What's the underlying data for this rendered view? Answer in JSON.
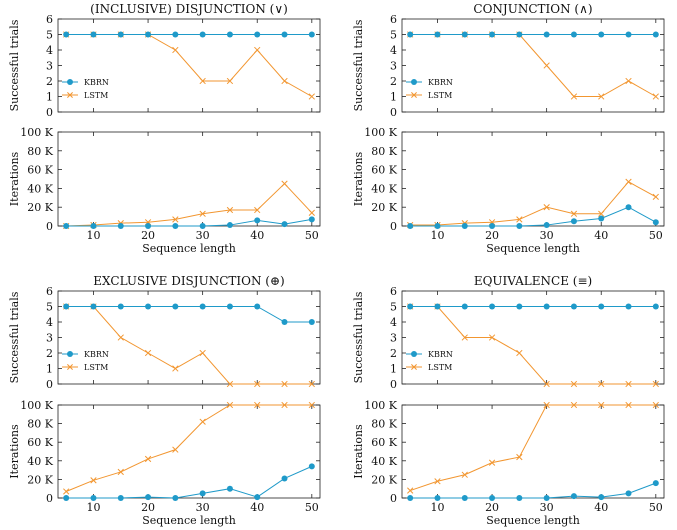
{
  "colors": {
    "kbrn": "#1f9ac9",
    "lstm": "#f29630"
  },
  "chart_data": [
    {
      "type": "line",
      "panel": "trials",
      "title": "(INCLUSIVE) DISJUNCTION (∨)",
      "xlabel": "",
      "ylabel": "Successful trials",
      "xlim": [
        3.5,
        51.5
      ],
      "ylim": [
        0,
        6
      ],
      "x": [
        5,
        10,
        15,
        20,
        25,
        30,
        35,
        40,
        45,
        50
      ],
      "xticks": [
        10,
        20,
        30,
        40,
        50
      ],
      "yticks": [
        0,
        1,
        2,
        3,
        4,
        5,
        6
      ],
      "ytick_labels": [
        "0",
        "1",
        "2",
        "3",
        "4",
        "5",
        "6"
      ],
      "legend": "lower-left",
      "series": [
        {
          "name": "KBRN",
          "values": [
            5,
            5,
            5,
            5,
            5,
            5,
            5,
            5,
            5,
            5
          ]
        },
        {
          "name": "LSTM",
          "values": [
            5,
            5,
            5,
            5,
            4,
            2,
            2,
            4,
            2,
            1
          ]
        }
      ]
    },
    {
      "type": "line",
      "panel": "iterations",
      "title": "",
      "xlabel": "Sequence length",
      "ylabel": "Iterations",
      "xlim": [
        3.5,
        51.5
      ],
      "ylim": [
        0,
        100
      ],
      "x": [
        5,
        10,
        15,
        20,
        25,
        30,
        35,
        40,
        45,
        50
      ],
      "xticks": [
        10,
        20,
        30,
        40,
        50
      ],
      "yticks": [
        0,
        20,
        40,
        60,
        80,
        100
      ],
      "ytick_labels": [
        "0",
        "20 K",
        "40 K",
        "60 K",
        "80 K",
        "100 K"
      ],
      "series": [
        {
          "name": "KBRN",
          "values": [
            0,
            0,
            0,
            0,
            0,
            0,
            1,
            6,
            2,
            7
          ]
        },
        {
          "name": "LSTM",
          "values": [
            0,
            1,
            3,
            4,
            7,
            13,
            17,
            17,
            45,
            14
          ]
        }
      ]
    },
    {
      "type": "line",
      "panel": "trials",
      "title": "CONJUNCTION (∧)",
      "xlabel": "",
      "ylabel": "Successful trials",
      "xlim": [
        3.5,
        51.5
      ],
      "ylim": [
        0,
        6
      ],
      "x": [
        5,
        10,
        15,
        20,
        25,
        30,
        35,
        40,
        45,
        50
      ],
      "xticks": [
        10,
        20,
        30,
        40,
        50
      ],
      "yticks": [
        0,
        1,
        2,
        3,
        4,
        5,
        6
      ],
      "ytick_labels": [
        "0",
        "1",
        "2",
        "3",
        "4",
        "5",
        "6"
      ],
      "legend": "lower-left",
      "series": [
        {
          "name": "KBRN",
          "values": [
            5,
            5,
            5,
            5,
            5,
            5,
            5,
            5,
            5,
            5
          ]
        },
        {
          "name": "LSTM",
          "values": [
            5,
            5,
            5,
            5,
            5,
            3,
            1,
            1,
            2,
            1
          ]
        }
      ]
    },
    {
      "type": "line",
      "panel": "iterations",
      "title": "",
      "xlabel": "Sequence length",
      "ylabel": "Iterations",
      "xlim": [
        3.5,
        51.5
      ],
      "ylim": [
        0,
        100
      ],
      "x": [
        5,
        10,
        15,
        20,
        25,
        30,
        35,
        40,
        45,
        50
      ],
      "xticks": [
        10,
        20,
        30,
        40,
        50
      ],
      "yticks": [
        0,
        20,
        40,
        60,
        80,
        100
      ],
      "ytick_labels": [
        "0",
        "20 K",
        "40 K",
        "60 K",
        "80 K",
        "100 K"
      ],
      "series": [
        {
          "name": "KBRN",
          "values": [
            0,
            0,
            0,
            0,
            0,
            1,
            5,
            8,
            20,
            4
          ]
        },
        {
          "name": "LSTM",
          "values": [
            1,
            1,
            3,
            4,
            7,
            20,
            13,
            13,
            47,
            31
          ]
        }
      ]
    },
    {
      "type": "line",
      "panel": "trials",
      "title": "EXCLUSIVE DISJUNCTION (⊕)",
      "xlabel": "",
      "ylabel": "Successful trials",
      "xlim": [
        3.5,
        51.5
      ],
      "ylim": [
        0,
        6
      ],
      "x": [
        5,
        10,
        15,
        20,
        25,
        30,
        35,
        40,
        45,
        50
      ],
      "xticks": [
        10,
        20,
        30,
        40,
        50
      ],
      "yticks": [
        0,
        1,
        2,
        3,
        4,
        5,
        6
      ],
      "ytick_labels": [
        "0",
        "1",
        "2",
        "3",
        "4",
        "5",
        "6"
      ],
      "legend": "lower-left",
      "series": [
        {
          "name": "KBRN",
          "values": [
            5,
            5,
            5,
            5,
            5,
            5,
            5,
            5,
            4,
            4
          ]
        },
        {
          "name": "LSTM",
          "values": [
            5,
            5,
            3,
            2,
            1,
            2,
            0,
            0,
            0,
            0
          ]
        }
      ]
    },
    {
      "type": "line",
      "panel": "iterations",
      "title": "",
      "xlabel": "Sequence length",
      "ylabel": "Iterations",
      "xlim": [
        3.5,
        51.5
      ],
      "ylim": [
        0,
        100
      ],
      "x": [
        5,
        10,
        15,
        20,
        25,
        30,
        35,
        40,
        45,
        50
      ],
      "xticks": [
        10,
        20,
        30,
        40,
        50
      ],
      "yticks": [
        0,
        20,
        40,
        60,
        80,
        100
      ],
      "ytick_labels": [
        "0",
        "20 K",
        "40 K",
        "60 K",
        "80 K",
        "100 K"
      ],
      "series": [
        {
          "name": "KBRN",
          "values": [
            0,
            0,
            0,
            1,
            0,
            5,
            10,
            1,
            21,
            34
          ]
        },
        {
          "name": "LSTM",
          "values": [
            7,
            19,
            28,
            42,
            52,
            82,
            100,
            100,
            100,
            100
          ]
        }
      ]
    },
    {
      "type": "line",
      "panel": "trials",
      "title": "EQUIVALENCE (≡)",
      "xlabel": "",
      "ylabel": "Successful trials",
      "xlim": [
        3.5,
        51.5
      ],
      "ylim": [
        0,
        6
      ],
      "x": [
        5,
        10,
        15,
        20,
        25,
        30,
        35,
        40,
        45,
        50
      ],
      "xticks": [
        10,
        20,
        30,
        40,
        50
      ],
      "yticks": [
        0,
        1,
        2,
        3,
        4,
        5,
        6
      ],
      "ytick_labels": [
        "0",
        "1",
        "2",
        "3",
        "4",
        "5",
        "6"
      ],
      "legend": "lower-left",
      "series": [
        {
          "name": "KBRN",
          "values": [
            5,
            5,
            5,
            5,
            5,
            5,
            5,
            5,
            5,
            5
          ]
        },
        {
          "name": "LSTM",
          "values": [
            5,
            5,
            3,
            3,
            2,
            0,
            0,
            0,
            0,
            0
          ]
        }
      ]
    },
    {
      "type": "line",
      "panel": "iterations",
      "title": "",
      "xlabel": "Sequence length",
      "ylabel": "Iterations",
      "xlim": [
        3.5,
        51.5
      ],
      "ylim": [
        0,
        100
      ],
      "x": [
        5,
        10,
        15,
        20,
        25,
        30,
        35,
        40,
        45,
        50
      ],
      "xticks": [
        10,
        20,
        30,
        40,
        50
      ],
      "yticks": [
        0,
        20,
        40,
        60,
        80,
        100
      ],
      "ytick_labels": [
        "0",
        "20 K",
        "40 K",
        "60 K",
        "80 K",
        "100 K"
      ],
      "series": [
        {
          "name": "KBRN",
          "values": [
            0,
            0,
            0,
            0,
            0,
            0,
            2,
            1,
            5,
            16
          ]
        },
        {
          "name": "LSTM",
          "values": [
            8,
            18,
            25,
            38,
            44,
            100,
            100,
            100,
            100,
            100
          ]
        }
      ]
    }
  ]
}
